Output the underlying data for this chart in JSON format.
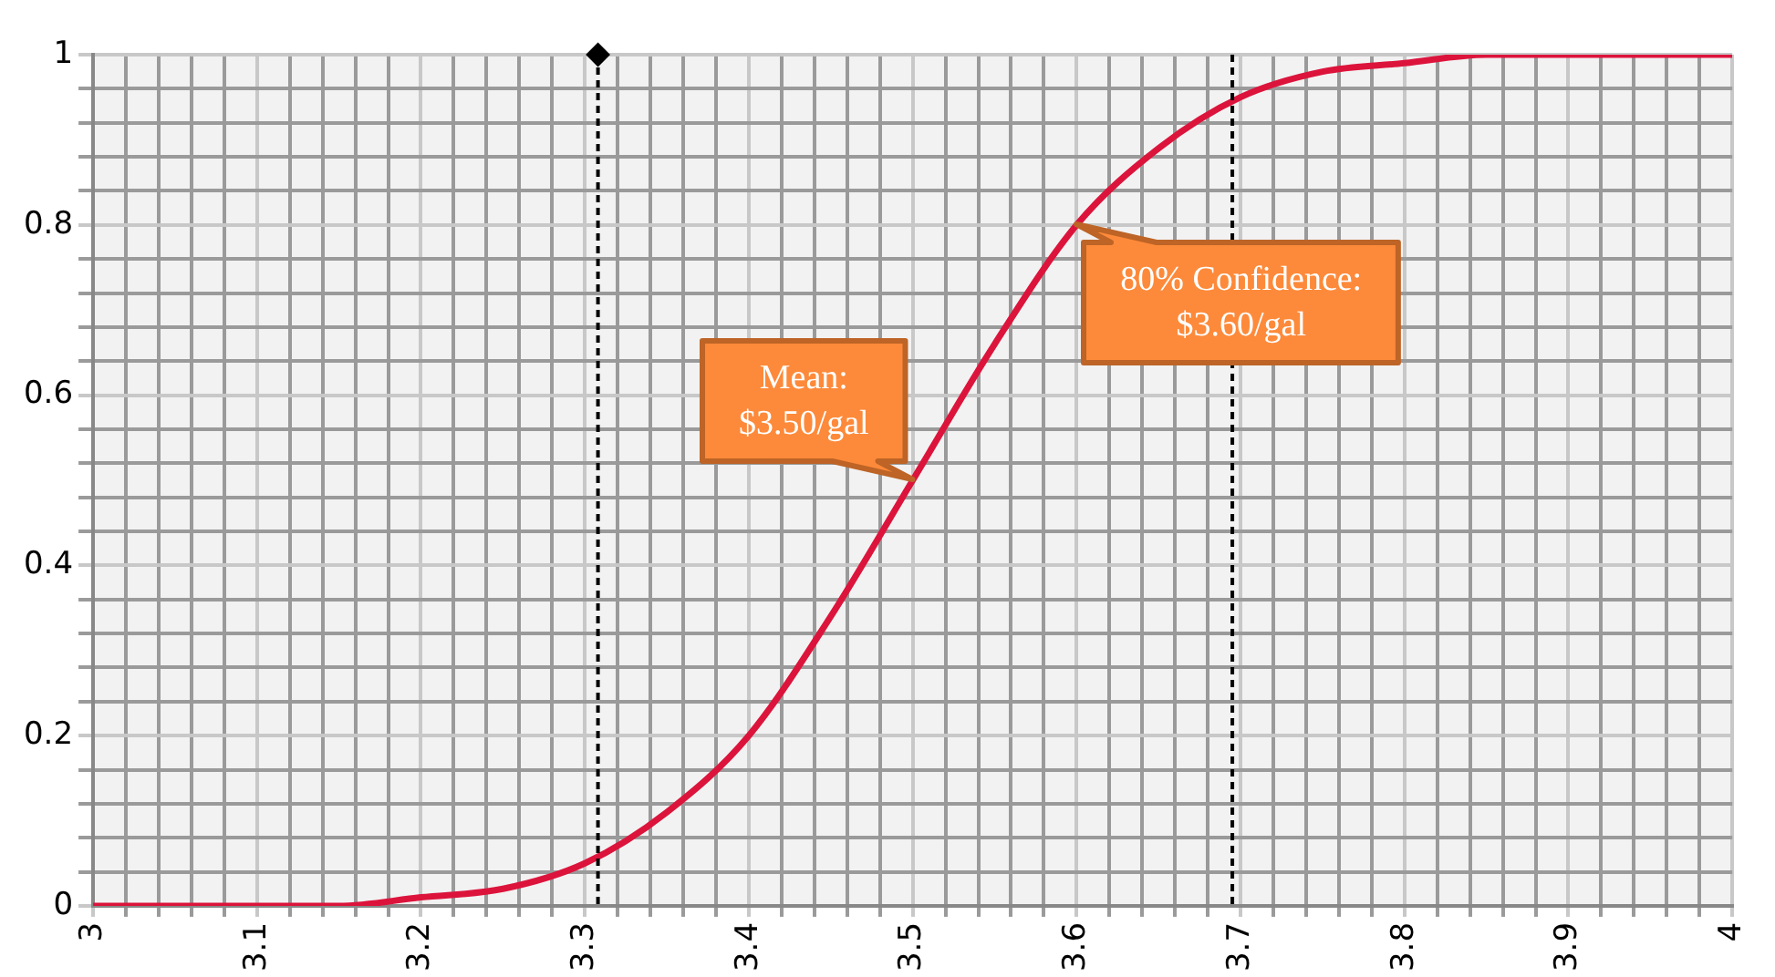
{
  "chart_data": {
    "type": "line",
    "x": [
      3.0,
      3.05,
      3.1,
      3.15,
      3.2,
      3.25,
      3.3,
      3.35,
      3.4,
      3.45,
      3.5,
      3.55,
      3.6,
      3.65,
      3.7,
      3.75,
      3.8,
      3.85,
      3.9,
      3.95,
      4.0
    ],
    "series": [
      {
        "color": "#dc143c",
        "values": [
          0,
          0,
          0,
          0,
          0.01,
          0.02,
          0.05,
          0.11,
          0.2,
          0.34,
          0.5,
          0.66,
          0.8,
          0.89,
          0.95,
          0.98,
          0.99,
          1,
          1,
          1,
          1
        ]
      },
      {
        "type": "scatter",
        "color": "#000000",
        "marker": "diamond",
        "x": [
          3.308
        ],
        "values": [
          1
        ]
      }
    ],
    "xlim": [
      3,
      4
    ],
    "ylim": [
      0,
      1
    ],
    "xticks": [
      3,
      {
        "value": 3.02,
        "label": null
      },
      {
        "value": 3.04,
        "label": null
      },
      {
        "value": 3.06,
        "label": null
      },
      {
        "value": 3.08,
        "label": null
      },
      3.1,
      {
        "value": 3.12,
        "label": null
      },
      {
        "value": 3.14,
        "label": null
      },
      {
        "value": 3.16,
        "label": null
      },
      {
        "value": 3.18,
        "label": null
      },
      3.2,
      {
        "value": 3.22,
        "label": null
      },
      {
        "value": 3.24,
        "label": null
      },
      {
        "value": 3.26,
        "label": null
      },
      {
        "value": 3.28,
        "label": null
      },
      3.3,
      {
        "value": 3.32,
        "label": null
      },
      {
        "value": 3.34,
        "label": null
      },
      {
        "value": 3.36,
        "label": null
      },
      {
        "value": 3.38,
        "label": null
      },
      3.4,
      {
        "value": 3.42,
        "label": null
      },
      {
        "value": 3.44,
        "label": null
      },
      {
        "value": 3.46,
        "label": null
      },
      {
        "value": 3.48,
        "label": null
      },
      3.5,
      {
        "value": 3.52,
        "label": null
      },
      {
        "value": 3.54,
        "label": null
      },
      {
        "value": 3.56,
        "label": null
      },
      {
        "value": 3.58,
        "label": null
      },
      3.6,
      {
        "value": 3.62,
        "label": null
      },
      {
        "value": 3.64,
        "label": null
      },
      {
        "value": 3.66,
        "label": null
      },
      {
        "value": 3.68,
        "label": null
      },
      3.7,
      {
        "value": 3.72,
        "label": null
      },
      {
        "value": 3.74,
        "label": null
      },
      {
        "value": 3.76,
        "label": null
      },
      {
        "value": 3.78,
        "label": null
      },
      3.8,
      {
        "value": 3.82,
        "label": null
      },
      {
        "value": 3.84,
        "label": null
      },
      {
        "value": 3.86,
        "label": null
      },
      {
        "value": 3.88,
        "label": null
      },
      3.9,
      {
        "value": 3.92,
        "label": null
      },
      {
        "value": 3.94,
        "label": null
      },
      {
        "value": 3.96,
        "label": null
      },
      {
        "value": 3.98,
        "label": null
      },
      4
    ],
    "yticks": [
      0,
      {
        "value": 0.04,
        "label": null
      },
      {
        "value": 0.08,
        "label": null
      },
      {
        "value": 0.12,
        "label": null
      },
      {
        "value": 0.16,
        "label": null
      },
      0.2,
      {
        "value": 0.24,
        "label": null
      },
      {
        "value": 0.28,
        "label": null
      },
      {
        "value": 0.32,
        "label": null
      },
      {
        "value": 0.36,
        "label": null
      },
      0.4,
      {
        "value": 0.44,
        "label": null
      },
      {
        "value": 0.48,
        "label": null
      },
      {
        "value": 0.52,
        "label": null
      },
      {
        "value": 0.56,
        "label": null
      },
      0.6,
      {
        "value": 0.64,
        "label": null
      },
      {
        "value": 0.68,
        "label": null
      },
      {
        "value": 0.72,
        "label": null
      },
      {
        "value": 0.76,
        "label": null
      },
      0.8,
      {
        "value": 0.84,
        "label": null
      },
      {
        "value": 0.88,
        "label": null
      },
      {
        "value": 0.92,
        "label": null
      },
      {
        "value": 0.96,
        "label": null
      },
      1
    ],
    "grid": true,
    "legend": false,
    "marker": "none",
    "line_style": "solid",
    "ref_lines": [
      {
        "axis": "x",
        "value": 3.308,
        "color": "#000000",
        "line_style": "dashed"
      },
      {
        "axis": "x",
        "value": 3.695,
        "color": "#000000",
        "line_style": "dashed"
      }
    ],
    "annotations": [
      {
        "text": "Mean:\n$3.50/gal",
        "x": 3.5,
        "y": 0.5
      },
      {
        "text": "80% Confidence:\n$3.60/gal",
        "x": 3.6,
        "y": 0.8
      }
    ]
  }
}
